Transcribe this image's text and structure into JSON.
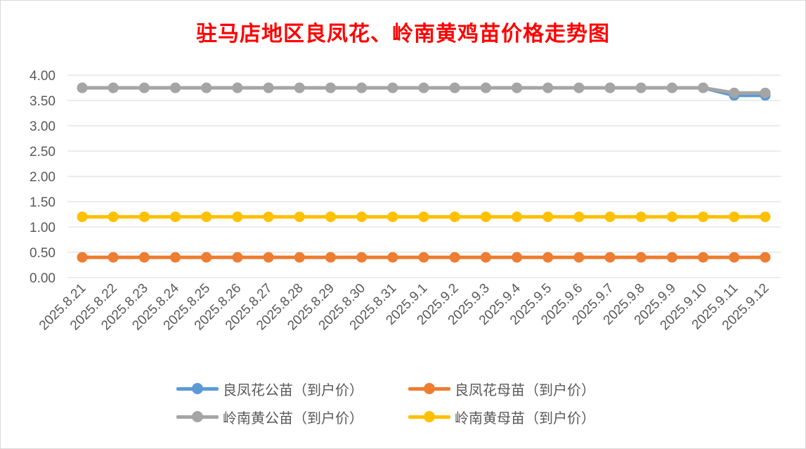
{
  "chart_data": {
    "type": "line",
    "title": "驻马店地区良凤花、岭南黄鸡苗价格走势图",
    "xlabel": "",
    "ylabel": "",
    "ylim": [
      0,
      4
    ],
    "yticks": [
      "0.00",
      "0.50",
      "1.00",
      "1.50",
      "2.00",
      "2.50",
      "3.00",
      "3.50",
      "4.00"
    ],
    "grid": true,
    "legend_position": "bottom",
    "categories": [
      "2025.8.21",
      "2025.8.22",
      "2025.8.23",
      "2025.8.24",
      "2025.8.25",
      "2025.8.26",
      "2025.8.27",
      "2025.8.28",
      "2025.8.29",
      "2025.8.30",
      "2025.8.31",
      "2025.9.1",
      "2025.9.2",
      "2025.9.3",
      "2025.9.4",
      "2025.9.5",
      "2025.9.6",
      "2025.9.7",
      "2025.9.8",
      "2025.9.9",
      "2025.9.10",
      "2025.9.11",
      "2025.9.12"
    ],
    "series": [
      {
        "name": "良凤花公苗（到户价）",
        "color": "#5b9bd5",
        "values": [
          3.75,
          3.75,
          3.75,
          3.75,
          3.75,
          3.75,
          3.75,
          3.75,
          3.75,
          3.75,
          3.75,
          3.75,
          3.75,
          3.75,
          3.75,
          3.75,
          3.75,
          3.75,
          3.75,
          3.75,
          3.75,
          3.6,
          3.6
        ]
      },
      {
        "name": "良凤花母苗（到户价）",
        "color": "#ed7d31",
        "values": [
          0.4,
          0.4,
          0.4,
          0.4,
          0.4,
          0.4,
          0.4,
          0.4,
          0.4,
          0.4,
          0.4,
          0.4,
          0.4,
          0.4,
          0.4,
          0.4,
          0.4,
          0.4,
          0.4,
          0.4,
          0.4,
          0.4,
          0.4
        ]
      },
      {
        "name": "岭南黄公苗（到户价）",
        "color": "#a5a5a5",
        "values": [
          3.75,
          3.75,
          3.75,
          3.75,
          3.75,
          3.75,
          3.75,
          3.75,
          3.75,
          3.75,
          3.75,
          3.75,
          3.75,
          3.75,
          3.75,
          3.75,
          3.75,
          3.75,
          3.75,
          3.75,
          3.75,
          3.65,
          3.65
        ]
      },
      {
        "name": "岭南黄母苗（到户价）",
        "color": "#ffc000",
        "values": [
          1.2,
          1.2,
          1.2,
          1.2,
          1.2,
          1.2,
          1.2,
          1.2,
          1.2,
          1.2,
          1.2,
          1.2,
          1.2,
          1.2,
          1.2,
          1.2,
          1.2,
          1.2,
          1.2,
          1.2,
          1.2,
          1.2,
          1.2
        ]
      }
    ]
  }
}
